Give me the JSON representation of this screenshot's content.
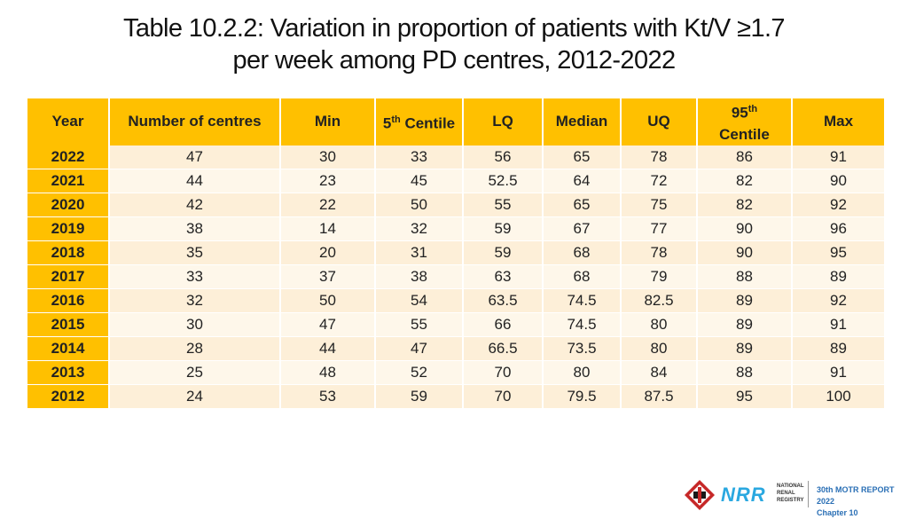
{
  "title": {
    "line1": "Table 10.2.2: Variation in proportion of patients with Kt/V ≥1.7",
    "line2": "per week among PD centres, 2012-2022"
  },
  "table": {
    "headers": {
      "year": "Year",
      "centres": "Number of centres",
      "min": "Min",
      "c5_num": "5",
      "c5_sup": "th",
      "c5_text": " Centile",
      "lq": "LQ",
      "median": "Median",
      "uq": "UQ",
      "c95_num": "95",
      "c95_sup": "th",
      "c95_text": "Centile",
      "max": "Max"
    },
    "rows": [
      [
        "2022",
        "47",
        "30",
        "33",
        "56",
        "65",
        "78",
        "86",
        "91"
      ],
      [
        "2021",
        "44",
        "23",
        "45",
        "52.5",
        "64",
        "72",
        "82",
        "90"
      ],
      [
        "2020",
        "42",
        "22",
        "50",
        "55",
        "65",
        "75",
        "82",
        "92"
      ],
      [
        "2019",
        "38",
        "14",
        "32",
        "59",
        "67",
        "77",
        "90",
        "96"
      ],
      [
        "2018",
        "35",
        "20",
        "31",
        "59",
        "68",
        "78",
        "90",
        "95"
      ],
      [
        "2017",
        "33",
        "37",
        "38",
        "63",
        "68",
        "79",
        "88",
        "89"
      ],
      [
        "2016",
        "32",
        "50",
        "54",
        "63.5",
        "74.5",
        "82.5",
        "89",
        "92"
      ],
      [
        "2015",
        "30",
        "47",
        "55",
        "66",
        "74.5",
        "80",
        "89",
        "91"
      ],
      [
        "2014",
        "28",
        "44",
        "47",
        "66.5",
        "73.5",
        "80",
        "89",
        "89"
      ],
      [
        "2013",
        "25",
        "48",
        "52",
        "70",
        "80",
        "84",
        "88",
        "91"
      ],
      [
        "2012",
        "24",
        "53",
        "59",
        "70",
        "79.5",
        "87.5",
        "95",
        "100"
      ]
    ]
  },
  "footer": {
    "logo_text": "NRR",
    "registry_line1": "NATIONAL",
    "registry_line2": "RENAL",
    "registry_line3": "REGISTRY",
    "report": "30th MOTR REPORT 2022",
    "chapter": "Chapter 10"
  }
}
